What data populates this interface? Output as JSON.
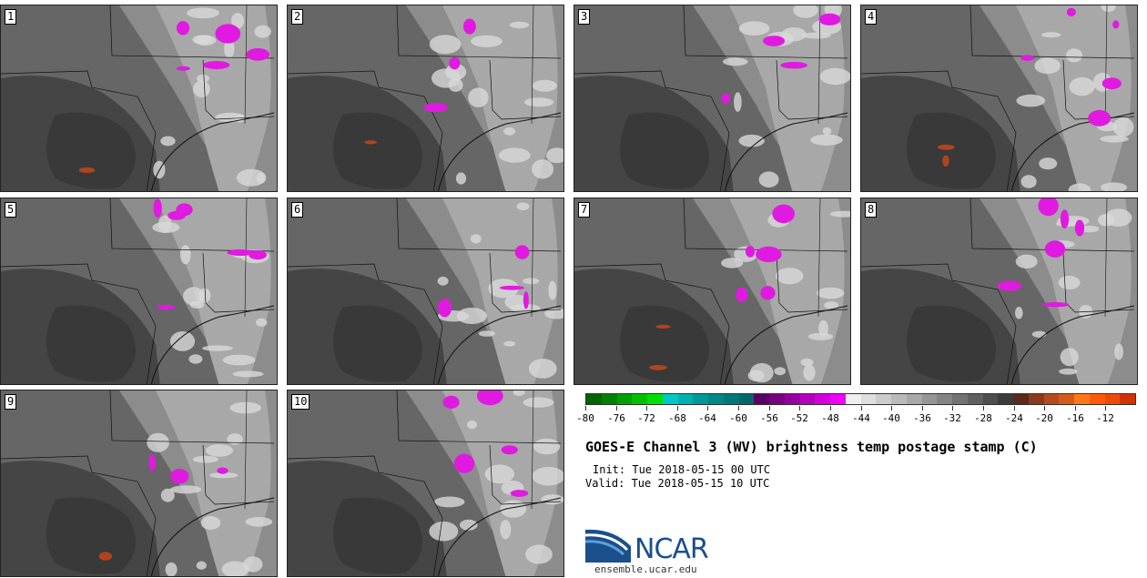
{
  "panels": [
    {
      "label": "1"
    },
    {
      "label": "2"
    },
    {
      "label": "3"
    },
    {
      "label": "4"
    },
    {
      "label": "5"
    },
    {
      "label": "6"
    },
    {
      "label": "7"
    },
    {
      "label": "8"
    },
    {
      "label": "9"
    },
    {
      "label": "10"
    }
  ],
  "colorbar": {
    "colors": [
      "#006400",
      "#008200",
      "#00a000",
      "#00c000",
      "#00e000",
      "#00c8c8",
      "#00b0b0",
      "#009898",
      "#008888",
      "#007878",
      "#006868",
      "#5a0064",
      "#780082",
      "#9600a0",
      "#b400be",
      "#d200dc",
      "#f000fa",
      "#f0f0f0",
      "#dedede",
      "#cccccc",
      "#bababa",
      "#a8a8a8",
      "#969696",
      "#848484",
      "#727272",
      "#606060",
      "#4e4e4e",
      "#3c3c3c",
      "#5a2a1a",
      "#8a3a1e",
      "#b44a1e",
      "#d45a1e",
      "#ff7814",
      "#ff5a0a",
      "#f04a0a",
      "#d23200"
    ],
    "tick_labels": [
      "-80",
      "-76",
      "-72",
      "-68",
      "-64",
      "-60",
      "-56",
      "-52",
      "-48",
      "-44",
      "-40",
      "-36",
      "-32",
      "-28",
      "-24",
      "-20",
      "-16",
      "-12"
    ]
  },
  "title": "GOES-E Channel 3 (WV) brightness temp postage stamp (C)",
  "init": "Init: Tue 2018-05-15 00 UTC",
  "valid": "Valid: Tue 2018-05-15 10 UTC",
  "logo_text": "NCAR",
  "website": "ensemble.ucar.edu",
  "colors": {
    "cold_cloud": "#e01ae0",
    "warm_dry": "#b0441e",
    "border": "#111111"
  }
}
